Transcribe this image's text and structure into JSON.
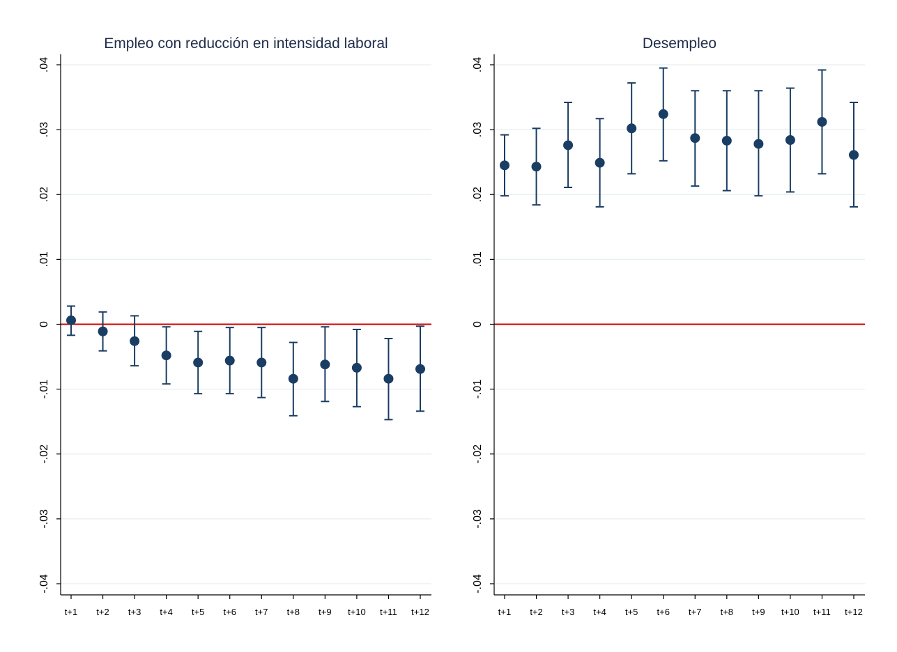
{
  "chart_data": [
    {
      "type": "scatter",
      "title": "Empleo con reducción en intensidad laboral",
      "xlabel": "",
      "ylabel": "",
      "categories": [
        "t+1",
        "t+2",
        "t+3",
        "t+4",
        "t+5",
        "t+6",
        "t+7",
        "t+8",
        "t+9",
        "t+10",
        "t+11",
        "t+12"
      ],
      "values": [
        0.0006,
        -0.0011,
        -0.0026,
        -0.0048,
        -0.0059,
        -0.0056,
        -0.0059,
        -0.0084,
        -0.0062,
        -0.0067,
        -0.0084,
        -0.0069
      ],
      "ci_low": [
        -0.0017,
        -0.0041,
        -0.0064,
        -0.0092,
        -0.0107,
        -0.0107,
        -0.0113,
        -0.0141,
        -0.0119,
        -0.0127,
        -0.0147,
        -0.0134
      ],
      "ci_high": [
        0.0028,
        0.0019,
        0.0013,
        -0.0004,
        -0.0011,
        -0.0005,
        -0.0005,
        -0.0028,
        -0.0004,
        -0.0008,
        -0.0022,
        -0.0003
      ],
      "ylim": [
        -0.04,
        0.04
      ],
      "yticks": [
        ".04",
        ".03",
        ".02",
        ".01",
        "0",
        "-.01",
        "-.02",
        "-.03",
        "-.04"
      ],
      "ytick_values": [
        0.04,
        0.03,
        0.02,
        0.01,
        0,
        -0.01,
        -0.02,
        -0.03,
        -0.04
      ],
      "reference_line": 0,
      "grid": true
    },
    {
      "type": "scatter",
      "title": "Desempleo",
      "xlabel": "",
      "ylabel": "",
      "categories": [
        "t+1",
        "t+2",
        "t+3",
        "t+4",
        "t+5",
        "t+6",
        "t+7",
        "t+8",
        "t+9",
        "t+10",
        "t+11",
        "t+12"
      ],
      "values": [
        0.0245,
        0.0243,
        0.0276,
        0.0249,
        0.0302,
        0.0324,
        0.0287,
        0.0283,
        0.0278,
        0.0284,
        0.0312,
        0.0261
      ],
      "ci_low": [
        0.0198,
        0.0184,
        0.0211,
        0.0181,
        0.0232,
        0.0252,
        0.0213,
        0.0206,
        0.0198,
        0.0204,
        0.0232,
        0.0181
      ],
      "ci_high": [
        0.0292,
        0.0302,
        0.0342,
        0.0317,
        0.0372,
        0.0395,
        0.036,
        0.036,
        0.036,
        0.0364,
        0.0392,
        0.0342
      ],
      "ylim": [
        -0.04,
        0.04
      ],
      "yticks": [
        ".04",
        ".03",
        ".02",
        ".01",
        "0",
        "-.01",
        "-.02",
        "-.03",
        "-.04"
      ],
      "ytick_values": [
        0.04,
        0.03,
        0.02,
        0.01,
        0,
        -0.01,
        -0.02,
        -0.03,
        -0.04
      ],
      "reference_line": 0,
      "grid": true
    }
  ],
  "colors": {
    "marker": "#1a3d63",
    "reference_line": "#d40000",
    "grid": "#e6eef2",
    "title": "#1e2d4a"
  }
}
